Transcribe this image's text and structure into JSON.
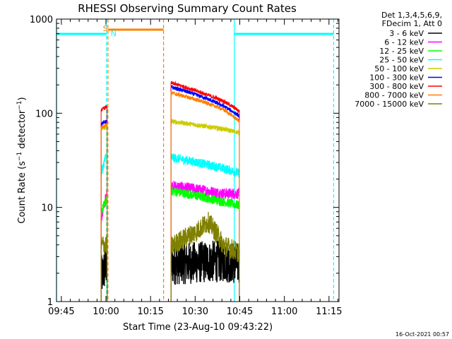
{
  "chart_data": {
    "type": "line",
    "title": "RHESSI Observing Summary Count Rates",
    "xlabel": "Start Time (23-Aug-10 09:43:22)",
    "ylabel": "Count Rate (s⁻¹ detector⁻¹)",
    "ylabel_parts": [
      "Count Rate (s",
      "−1",
      " detector",
      "−1",
      ")"
    ],
    "yscale": "log",
    "ylim": [
      1,
      1000
    ],
    "xlim_minutes": [
      0,
      95
    ],
    "x_ticks": [
      "09:45",
      "10:00",
      "10:15",
      "10:30",
      "10:45",
      "11:00",
      "11:15"
    ],
    "y_ticks": [
      "1",
      "10",
      "100",
      "1000"
    ],
    "legend_header": [
      "Det 1,3,4,5,6,9,",
      "FDecim 1, Att 0"
    ],
    "legend_position": "right",
    "footer": "16-Oct-2021 00:57",
    "series": [
      {
        "name": "3 - 6 keV",
        "color": "#000000",
        "segments": [
          [
            [
              15,
              1.8
            ],
            [
              17,
              2.5
            ]
          ],
          [
            [
              38.5,
              2.5
            ],
            [
              56,
              2.7
            ],
            [
              61.5,
              2.5
            ]
          ]
        ]
      },
      {
        "name": "6 - 12 keV",
        "color": "#ff00ff",
        "segments": [
          [
            [
              15,
              7
            ],
            [
              17,
              14
            ]
          ],
          [
            [
              38.5,
              17
            ],
            [
              56,
              14
            ],
            [
              61.5,
              14
            ]
          ]
        ]
      },
      {
        "name": "12 - 25 keV",
        "color": "#00ff00",
        "segments": [
          [
            [
              15,
              9
            ],
            [
              17,
              12
            ]
          ],
          [
            [
              38.5,
              15
            ],
            [
              56,
              11.5
            ],
            [
              61.5,
              10.5
            ]
          ]
        ]
      },
      {
        "name": "25 - 50 keV",
        "color": "#00ffff",
        "segments": [
          [
            [
              15,
              22
            ],
            [
              17,
              38
            ]
          ],
          [
            [
              38.5,
              34
            ],
            [
              56,
              26
            ],
            [
              61.5,
              23
            ]
          ]
        ]
      },
      {
        "name": "50 - 100 keV",
        "color": "#cccc00",
        "segments": [
          [
            [
              15,
              68
            ],
            [
              17,
              72
            ]
          ],
          [
            [
              38.5,
              82
            ],
            [
              56,
              68
            ],
            [
              61.5,
              62
            ]
          ]
        ]
      },
      {
        "name": "100 - 300 keV",
        "color": "#0000ff",
        "segments": [
          [
            [
              15,
              78
            ],
            [
              17,
              82
            ]
          ],
          [
            [
              38.5,
              190
            ],
            [
              50,
              145
            ],
            [
              56,
              120
            ],
            [
              61.5,
              93
            ]
          ]
        ]
      },
      {
        "name": "300 - 800 keV",
        "color": "#ff0000",
        "segments": [
          [
            [
              15,
              108
            ],
            [
              17,
              118
            ]
          ],
          [
            [
              38.5,
              210
            ],
            [
              50,
              160
            ],
            [
              56,
              135
            ],
            [
              61.5,
              105
            ]
          ]
        ]
      },
      {
        "name": "800 - 7000 keV",
        "color": "#ff8000",
        "segments": [
          [
            [
              15,
              70
            ],
            [
              17,
              76
            ]
          ],
          [
            [
              38.5,
              165
            ],
            [
              50,
              130
            ],
            [
              56,
              110
            ],
            [
              61.5,
              82
            ]
          ]
        ]
      },
      {
        "name": "7000 - 15000 keV",
        "color": "#808000",
        "segments": [
          [
            [
              15,
              4
            ],
            [
              17,
              4
            ]
          ],
          [
            [
              38.5,
              3.8
            ],
            [
              47,
              5.5
            ],
            [
              51,
              7
            ],
            [
              56,
              4
            ],
            [
              61.5,
              3.3
            ]
          ]
        ]
      }
    ],
    "annotations": [
      {
        "label": "S",
        "color": "#ff8000",
        "x": 17.5
      },
      {
        "label": "N",
        "color": "#00ffff",
        "x": 17.5
      }
    ]
  }
}
